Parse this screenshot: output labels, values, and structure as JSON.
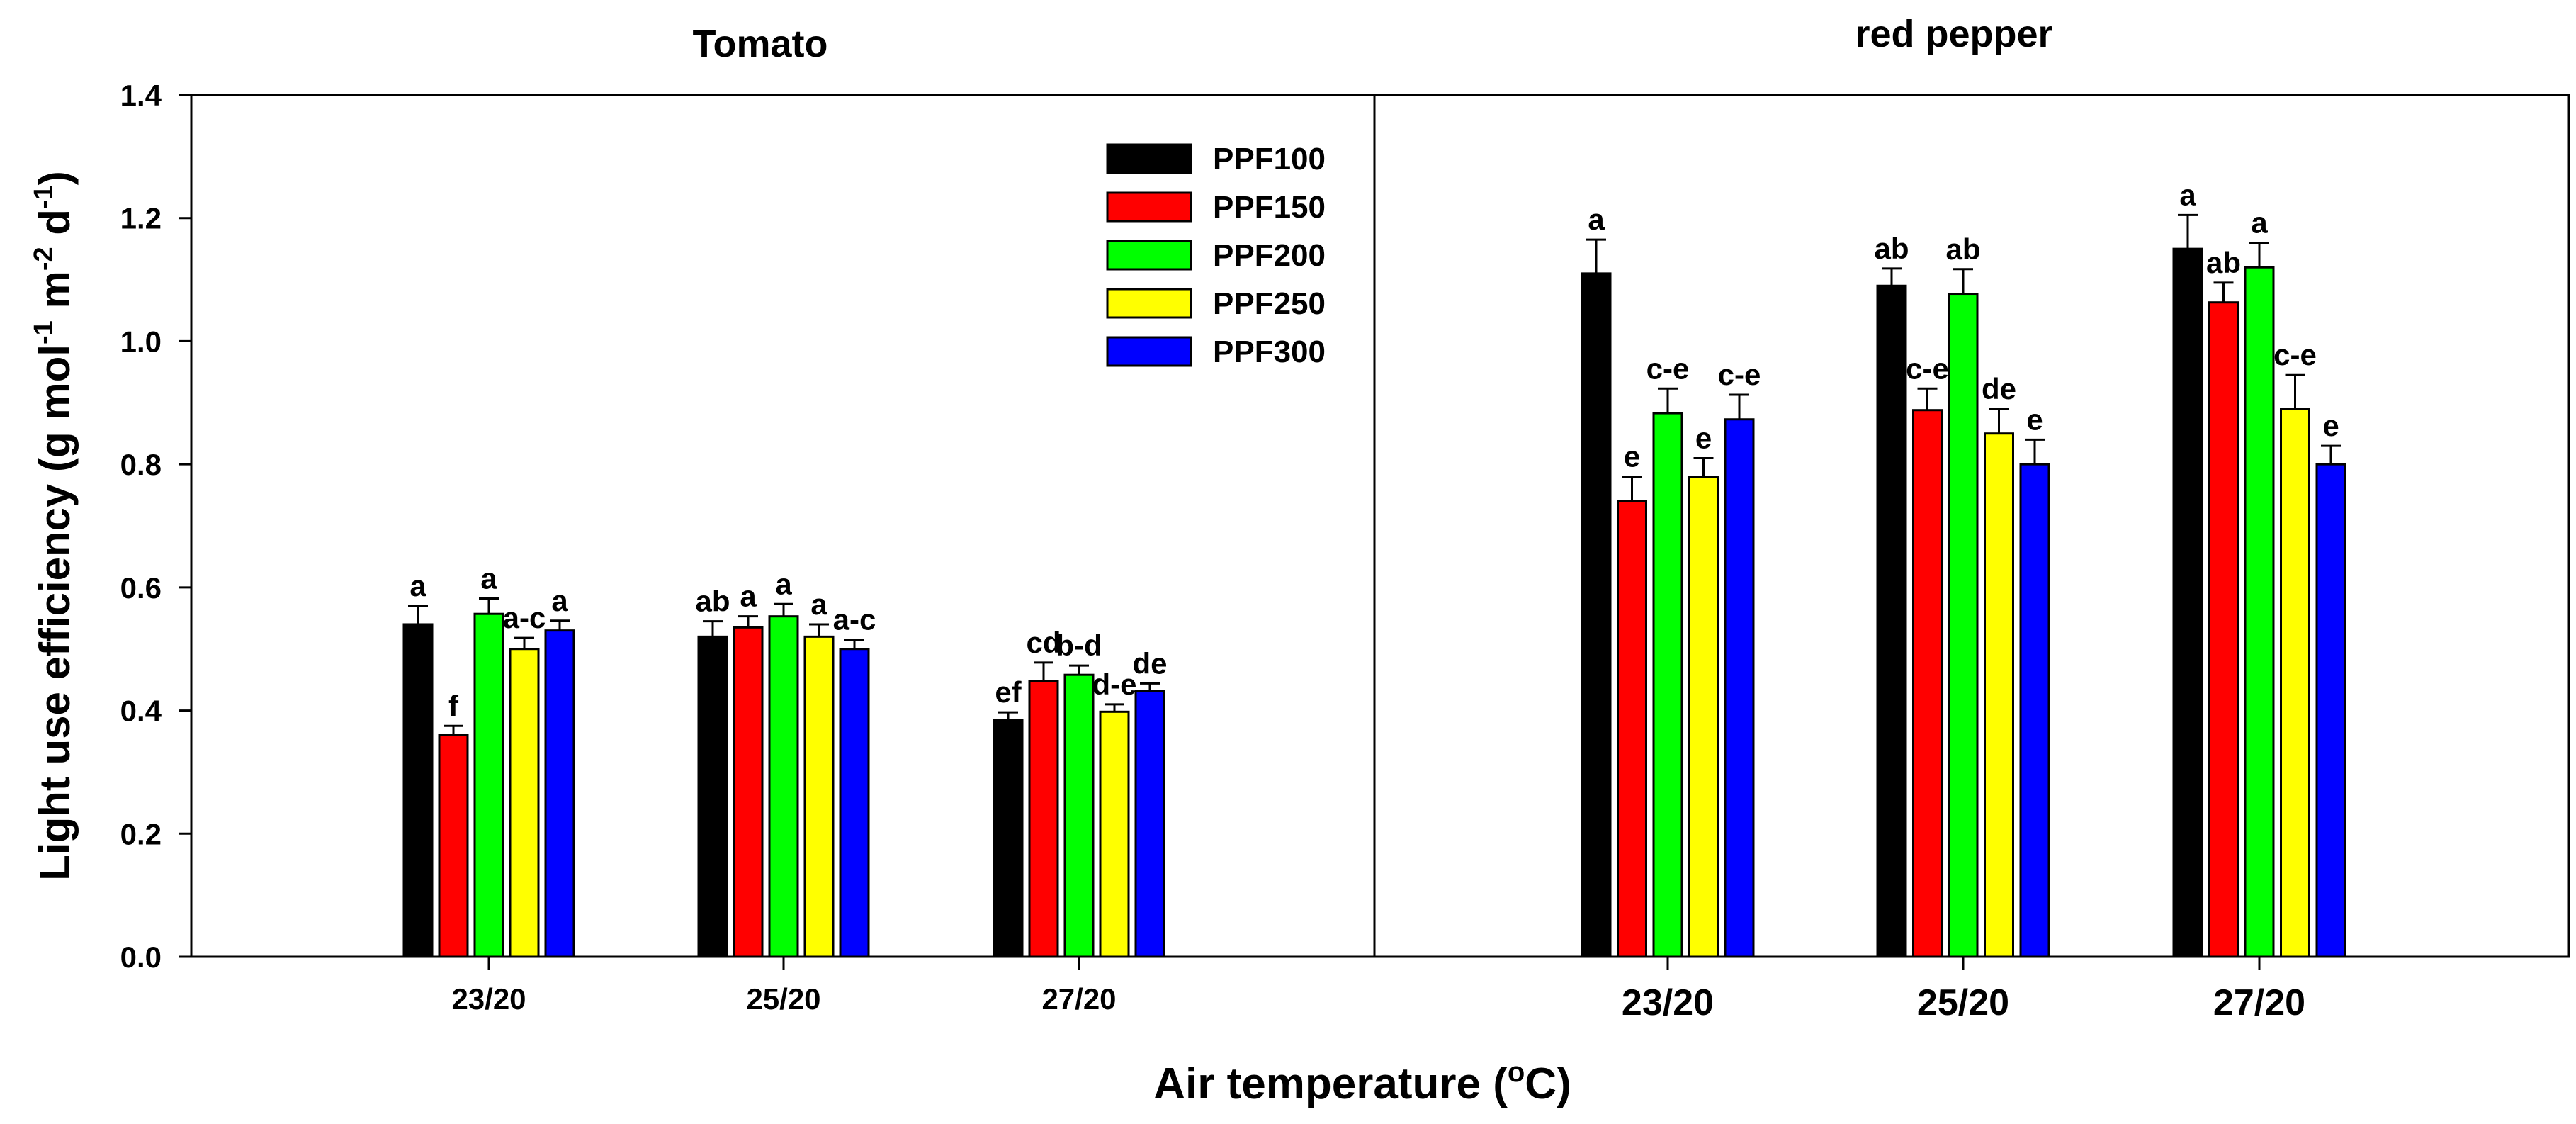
{
  "chart_data": {
    "type": "bar",
    "ylabel_parts": [
      "Light use efficiency (g mol",
      "-1",
      " m",
      "-2",
      " d",
      "-1",
      ")"
    ],
    "xlabel_parts": [
      "Air temperature (",
      "o",
      "C)"
    ],
    "ylim": [
      0,
      1.4
    ],
    "yticks": [
      "0.0",
      "0.2",
      "0.4",
      "0.6",
      "0.8",
      "1.0",
      "1.2",
      "1.4"
    ],
    "ytick_values": [
      0,
      0.2,
      0.4,
      0.6,
      0.8,
      1.0,
      1.2,
      1.4
    ],
    "colors": {
      "PPF100": "#000000",
      "PPF150": "#ff0000",
      "PPF200": "#00ff00",
      "PPF250": "#ffff00",
      "PPF300": "#0000ff"
    },
    "legend": [
      "PPF100",
      "PPF150",
      "PPF200",
      "PPF250",
      "PPF300"
    ],
    "panels": [
      {
        "title": "Tomato",
        "categories": [
          "23/20",
          "25/20",
          "27/20"
        ],
        "series": [
          {
            "name": "PPF100",
            "values": [
              0.54,
              0.52,
              0.385
            ],
            "errors": [
              0.03,
              0.025,
              0.012
            ],
            "labels": [
              "a",
              "ab",
              "ef"
            ]
          },
          {
            "name": "PPF150",
            "values": [
              0.36,
              0.535,
              0.448
            ],
            "errors": [
              0.015,
              0.018,
              0.03
            ],
            "labels": [
              "f",
              "a",
              "cd"
            ]
          },
          {
            "name": "PPF200",
            "values": [
              0.557,
              0.553,
              0.458
            ],
            "errors": [
              0.025,
              0.02,
              0.015
            ],
            "labels": [
              "a",
              "a",
              "b-d"
            ]
          },
          {
            "name": "PPF250",
            "values": [
              0.5,
              0.52,
              0.398
            ],
            "errors": [
              0.018,
              0.02,
              0.012
            ],
            "labels": [
              "a-c",
              "a",
              "d-e"
            ]
          },
          {
            "name": "PPF300",
            "values": [
              0.53,
              0.5,
              0.432
            ],
            "errors": [
              0.016,
              0.015,
              0.012
            ],
            "labels": [
              "a",
              "a-c",
              "de"
            ]
          }
        ]
      },
      {
        "title": "red pepper",
        "categories": [
          "23/20",
          "25/20",
          "27/20"
        ],
        "series": [
          {
            "name": "PPF100",
            "values": [
              1.11,
              1.09,
              1.15
            ],
            "errors": [
              0.055,
              0.028,
              0.055
            ],
            "labels": [
              "a",
              "ab",
              "a"
            ]
          },
          {
            "name": "PPF150",
            "values": [
              0.74,
              0.888,
              1.063
            ],
            "errors": [
              0.04,
              0.035,
              0.032
            ],
            "labels": [
              "e",
              "c-e",
              "ab"
            ]
          },
          {
            "name": "PPF200",
            "values": [
              0.883,
              1.077,
              1.12
            ],
            "errors": [
              0.04,
              0.04,
              0.04
            ],
            "labels": [
              "c-e",
              "ab",
              "a"
            ]
          },
          {
            "name": "PPF250",
            "values": [
              0.78,
              0.85,
              0.89
            ],
            "errors": [
              0.03,
              0.04,
              0.055
            ],
            "labels": [
              "e",
              "de",
              "c-e"
            ]
          },
          {
            "name": "PPF300",
            "values": [
              0.873,
              0.8,
              0.8
            ],
            "errors": [
              0.04,
              0.04,
              0.03
            ],
            "labels": [
              "c-e",
              "e",
              "e"
            ]
          }
        ]
      }
    ]
  }
}
